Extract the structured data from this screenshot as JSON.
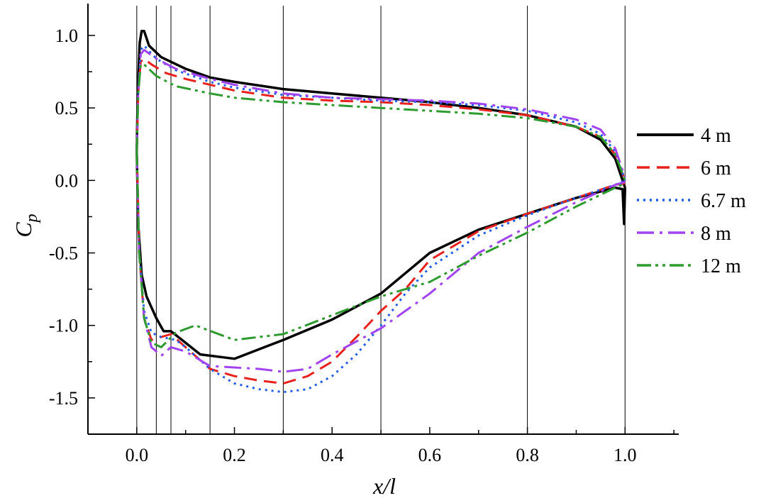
{
  "chart_data": {
    "type": "line",
    "xlabel": "x/l",
    "ylabel": {
      "main": "C",
      "sub": "p"
    },
    "xlim": [
      -0.1,
      1.11
    ],
    "ylim": [
      -1.75,
      1.22
    ],
    "xticks": [
      0.0,
      0.2,
      0.4,
      0.6,
      0.8,
      1.0
    ],
    "xtick_labels": [
      "0.0",
      "0.2",
      "0.4",
      "0.6",
      "0.8",
      "1.0"
    ],
    "yticks": [
      1.0,
      0.5,
      0.0,
      -0.5,
      -1.0,
      -1.5
    ],
    "ytick_labels": [
      "1.0",
      "0.5",
      "0.0",
      "-0.5",
      "-1.0",
      "-1.5"
    ],
    "reference_lines_x": [
      0.0,
      0.04,
      0.07,
      0.15,
      0.3,
      0.5,
      0.8,
      1.0
    ],
    "grid": false,
    "legend_position": "right",
    "series": [
      {
        "name": "4 m",
        "color": "#000000",
        "dash": "solid",
        "upper": [
          [
            0,
            0.2
          ],
          [
            0.002,
            0.6
          ],
          [
            0.006,
            0.95
          ],
          [
            0.01,
            1.03
          ],
          [
            0.015,
            1.03
          ],
          [
            0.025,
            0.93
          ],
          [
            0.05,
            0.85
          ],
          [
            0.1,
            0.77
          ],
          [
            0.15,
            0.71
          ],
          [
            0.2,
            0.68
          ],
          [
            0.3,
            0.63
          ],
          [
            0.4,
            0.6
          ],
          [
            0.5,
            0.57
          ],
          [
            0.6,
            0.54
          ],
          [
            0.7,
            0.5
          ],
          [
            0.8,
            0.45
          ],
          [
            0.9,
            0.37
          ],
          [
            0.95,
            0.28
          ],
          [
            0.98,
            0.15
          ],
          [
            1.0,
            -0.05
          ]
        ],
        "lower": [
          [
            0,
            0.2
          ],
          [
            0.003,
            -0.3
          ],
          [
            0.01,
            -0.65
          ],
          [
            0.02,
            -0.8
          ],
          [
            0.04,
            -0.95
          ],
          [
            0.055,
            -1.04
          ],
          [
            0.07,
            -1.04
          ],
          [
            0.1,
            -1.12
          ],
          [
            0.13,
            -1.2
          ],
          [
            0.2,
            -1.23
          ],
          [
            0.3,
            -1.1
          ],
          [
            0.4,
            -0.96
          ],
          [
            0.5,
            -0.78
          ],
          [
            0.6,
            -0.5
          ],
          [
            0.7,
            -0.34
          ],
          [
            0.8,
            -0.23
          ],
          [
            0.9,
            -0.12
          ],
          [
            0.98,
            -0.05
          ],
          [
            0.995,
            -0.06
          ],
          [
            0.998,
            -0.3
          ],
          [
            1.0,
            -0.05
          ]
        ]
      },
      {
        "name": "6 m",
        "color": "#e8211d",
        "dash": "dashed",
        "upper": [
          [
            0,
            0.2
          ],
          [
            0.003,
            0.6
          ],
          [
            0.008,
            0.82
          ],
          [
            0.015,
            0.84
          ],
          [
            0.03,
            0.8
          ],
          [
            0.06,
            0.74
          ],
          [
            0.1,
            0.7
          ],
          [
            0.2,
            0.62
          ],
          [
            0.3,
            0.57
          ],
          [
            0.4,
            0.55
          ],
          [
            0.5,
            0.54
          ],
          [
            0.6,
            0.52
          ],
          [
            0.7,
            0.49
          ],
          [
            0.8,
            0.45
          ],
          [
            0.9,
            0.37
          ],
          [
            0.95,
            0.3
          ],
          [
            0.98,
            0.18
          ],
          [
            1.0,
            0.0
          ]
        ],
        "lower": [
          [
            0,
            0.2
          ],
          [
            0.005,
            -0.5
          ],
          [
            0.015,
            -0.95
          ],
          [
            0.03,
            -1.1
          ],
          [
            0.05,
            -1.08
          ],
          [
            0.07,
            -1.06
          ],
          [
            0.1,
            -1.15
          ],
          [
            0.15,
            -1.3
          ],
          [
            0.2,
            -1.35
          ],
          [
            0.25,
            -1.38
          ],
          [
            0.3,
            -1.4
          ],
          [
            0.35,
            -1.35
          ],
          [
            0.4,
            -1.25
          ],
          [
            0.45,
            -1.08
          ],
          [
            0.5,
            -0.9
          ],
          [
            0.55,
            -0.75
          ],
          [
            0.6,
            -0.55
          ],
          [
            0.7,
            -0.35
          ],
          [
            0.8,
            -0.23
          ],
          [
            0.9,
            -0.12
          ],
          [
            0.98,
            -0.03
          ],
          [
            1.0,
            -0.02
          ]
        ]
      },
      {
        "name": "6.7 m",
        "color": "#1f5ce8",
        "dash": "dotted",
        "upper": [
          [
            0,
            0.2
          ],
          [
            0.003,
            0.6
          ],
          [
            0.008,
            0.9
          ],
          [
            0.015,
            0.93
          ],
          [
            0.04,
            0.84
          ],
          [
            0.08,
            0.76
          ],
          [
            0.15,
            0.68
          ],
          [
            0.2,
            0.64
          ],
          [
            0.3,
            0.59
          ],
          [
            0.4,
            0.57
          ],
          [
            0.5,
            0.55
          ],
          [
            0.6,
            0.54
          ],
          [
            0.7,
            0.52
          ],
          [
            0.8,
            0.48
          ],
          [
            0.9,
            0.4
          ],
          [
            0.95,
            0.32
          ],
          [
            0.98,
            0.2
          ],
          [
            1.0,
            0.0
          ]
        ],
        "lower": [
          [
            0,
            0.2
          ],
          [
            0.005,
            -0.5
          ],
          [
            0.015,
            -0.9
          ],
          [
            0.03,
            -1.05
          ],
          [
            0.05,
            -1.08
          ],
          [
            0.08,
            -1.1
          ],
          [
            0.1,
            -1.15
          ],
          [
            0.15,
            -1.3
          ],
          [
            0.2,
            -1.4
          ],
          [
            0.25,
            -1.44
          ],
          [
            0.3,
            -1.46
          ],
          [
            0.35,
            -1.44
          ],
          [
            0.4,
            -1.35
          ],
          [
            0.45,
            -1.2
          ],
          [
            0.5,
            -1.0
          ],
          [
            0.55,
            -0.78
          ],
          [
            0.6,
            -0.6
          ],
          [
            0.7,
            -0.38
          ],
          [
            0.8,
            -0.24
          ],
          [
            0.9,
            -0.12
          ],
          [
            0.98,
            -0.03
          ],
          [
            1.0,
            0.0
          ]
        ]
      },
      {
        "name": "8 m",
        "color": "#a144f0",
        "dash": "dashdot",
        "upper": [
          [
            0,
            0.2
          ],
          [
            0.003,
            0.6
          ],
          [
            0.008,
            0.87
          ],
          [
            0.015,
            0.9
          ],
          [
            0.04,
            0.84
          ],
          [
            0.08,
            0.77
          ],
          [
            0.15,
            0.7
          ],
          [
            0.2,
            0.66
          ],
          [
            0.3,
            0.6
          ],
          [
            0.4,
            0.57
          ],
          [
            0.5,
            0.56
          ],
          [
            0.6,
            0.55
          ],
          [
            0.7,
            0.53
          ],
          [
            0.8,
            0.49
          ],
          [
            0.9,
            0.42
          ],
          [
            0.95,
            0.35
          ],
          [
            0.98,
            0.22
          ],
          [
            1.0,
            0.02
          ]
        ],
        "lower": [
          [
            0,
            0.2
          ],
          [
            0.005,
            -0.5
          ],
          [
            0.015,
            -0.95
          ],
          [
            0.03,
            -1.15
          ],
          [
            0.05,
            -1.21
          ],
          [
            0.07,
            -1.15
          ],
          [
            0.1,
            -1.18
          ],
          [
            0.15,
            -1.28
          ],
          [
            0.2,
            -1.29
          ],
          [
            0.25,
            -1.3
          ],
          [
            0.3,
            -1.32
          ],
          [
            0.35,
            -1.3
          ],
          [
            0.4,
            -1.2
          ],
          [
            0.5,
            -1.02
          ],
          [
            0.6,
            -0.78
          ],
          [
            0.7,
            -0.5
          ],
          [
            0.8,
            -0.32
          ],
          [
            0.9,
            -0.15
          ],
          [
            0.98,
            -0.03
          ],
          [
            1.0,
            -0.01
          ]
        ]
      },
      {
        "name": "12 m",
        "color": "#2e9b2e",
        "dash": "dashdotdot",
        "upper": [
          [
            0,
            0.2
          ],
          [
            0.003,
            0.6
          ],
          [
            0.008,
            0.8
          ],
          [
            0.015,
            0.8
          ],
          [
            0.04,
            0.72
          ],
          [
            0.08,
            0.65
          ],
          [
            0.15,
            0.6
          ],
          [
            0.2,
            0.57
          ],
          [
            0.3,
            0.54
          ],
          [
            0.4,
            0.52
          ],
          [
            0.5,
            0.5
          ],
          [
            0.6,
            0.48
          ],
          [
            0.7,
            0.46
          ],
          [
            0.8,
            0.43
          ],
          [
            0.9,
            0.37
          ],
          [
            0.95,
            0.3
          ],
          [
            0.98,
            0.18
          ],
          [
            1.0,
            0.0
          ]
        ],
        "lower": [
          [
            0,
            0.2
          ],
          [
            0.005,
            -0.5
          ],
          [
            0.015,
            -0.95
          ],
          [
            0.03,
            -1.12
          ],
          [
            0.05,
            -1.15
          ],
          [
            0.08,
            -1.05
          ],
          [
            0.12,
            -1.0
          ],
          [
            0.2,
            -1.1
          ],
          [
            0.3,
            -1.06
          ],
          [
            0.4,
            -0.93
          ],
          [
            0.5,
            -0.8
          ],
          [
            0.6,
            -0.7
          ],
          [
            0.7,
            -0.52
          ],
          [
            0.8,
            -0.36
          ],
          [
            0.9,
            -0.18
          ],
          [
            0.98,
            -0.05
          ],
          [
            1.0,
            -0.02
          ]
        ]
      }
    ]
  }
}
